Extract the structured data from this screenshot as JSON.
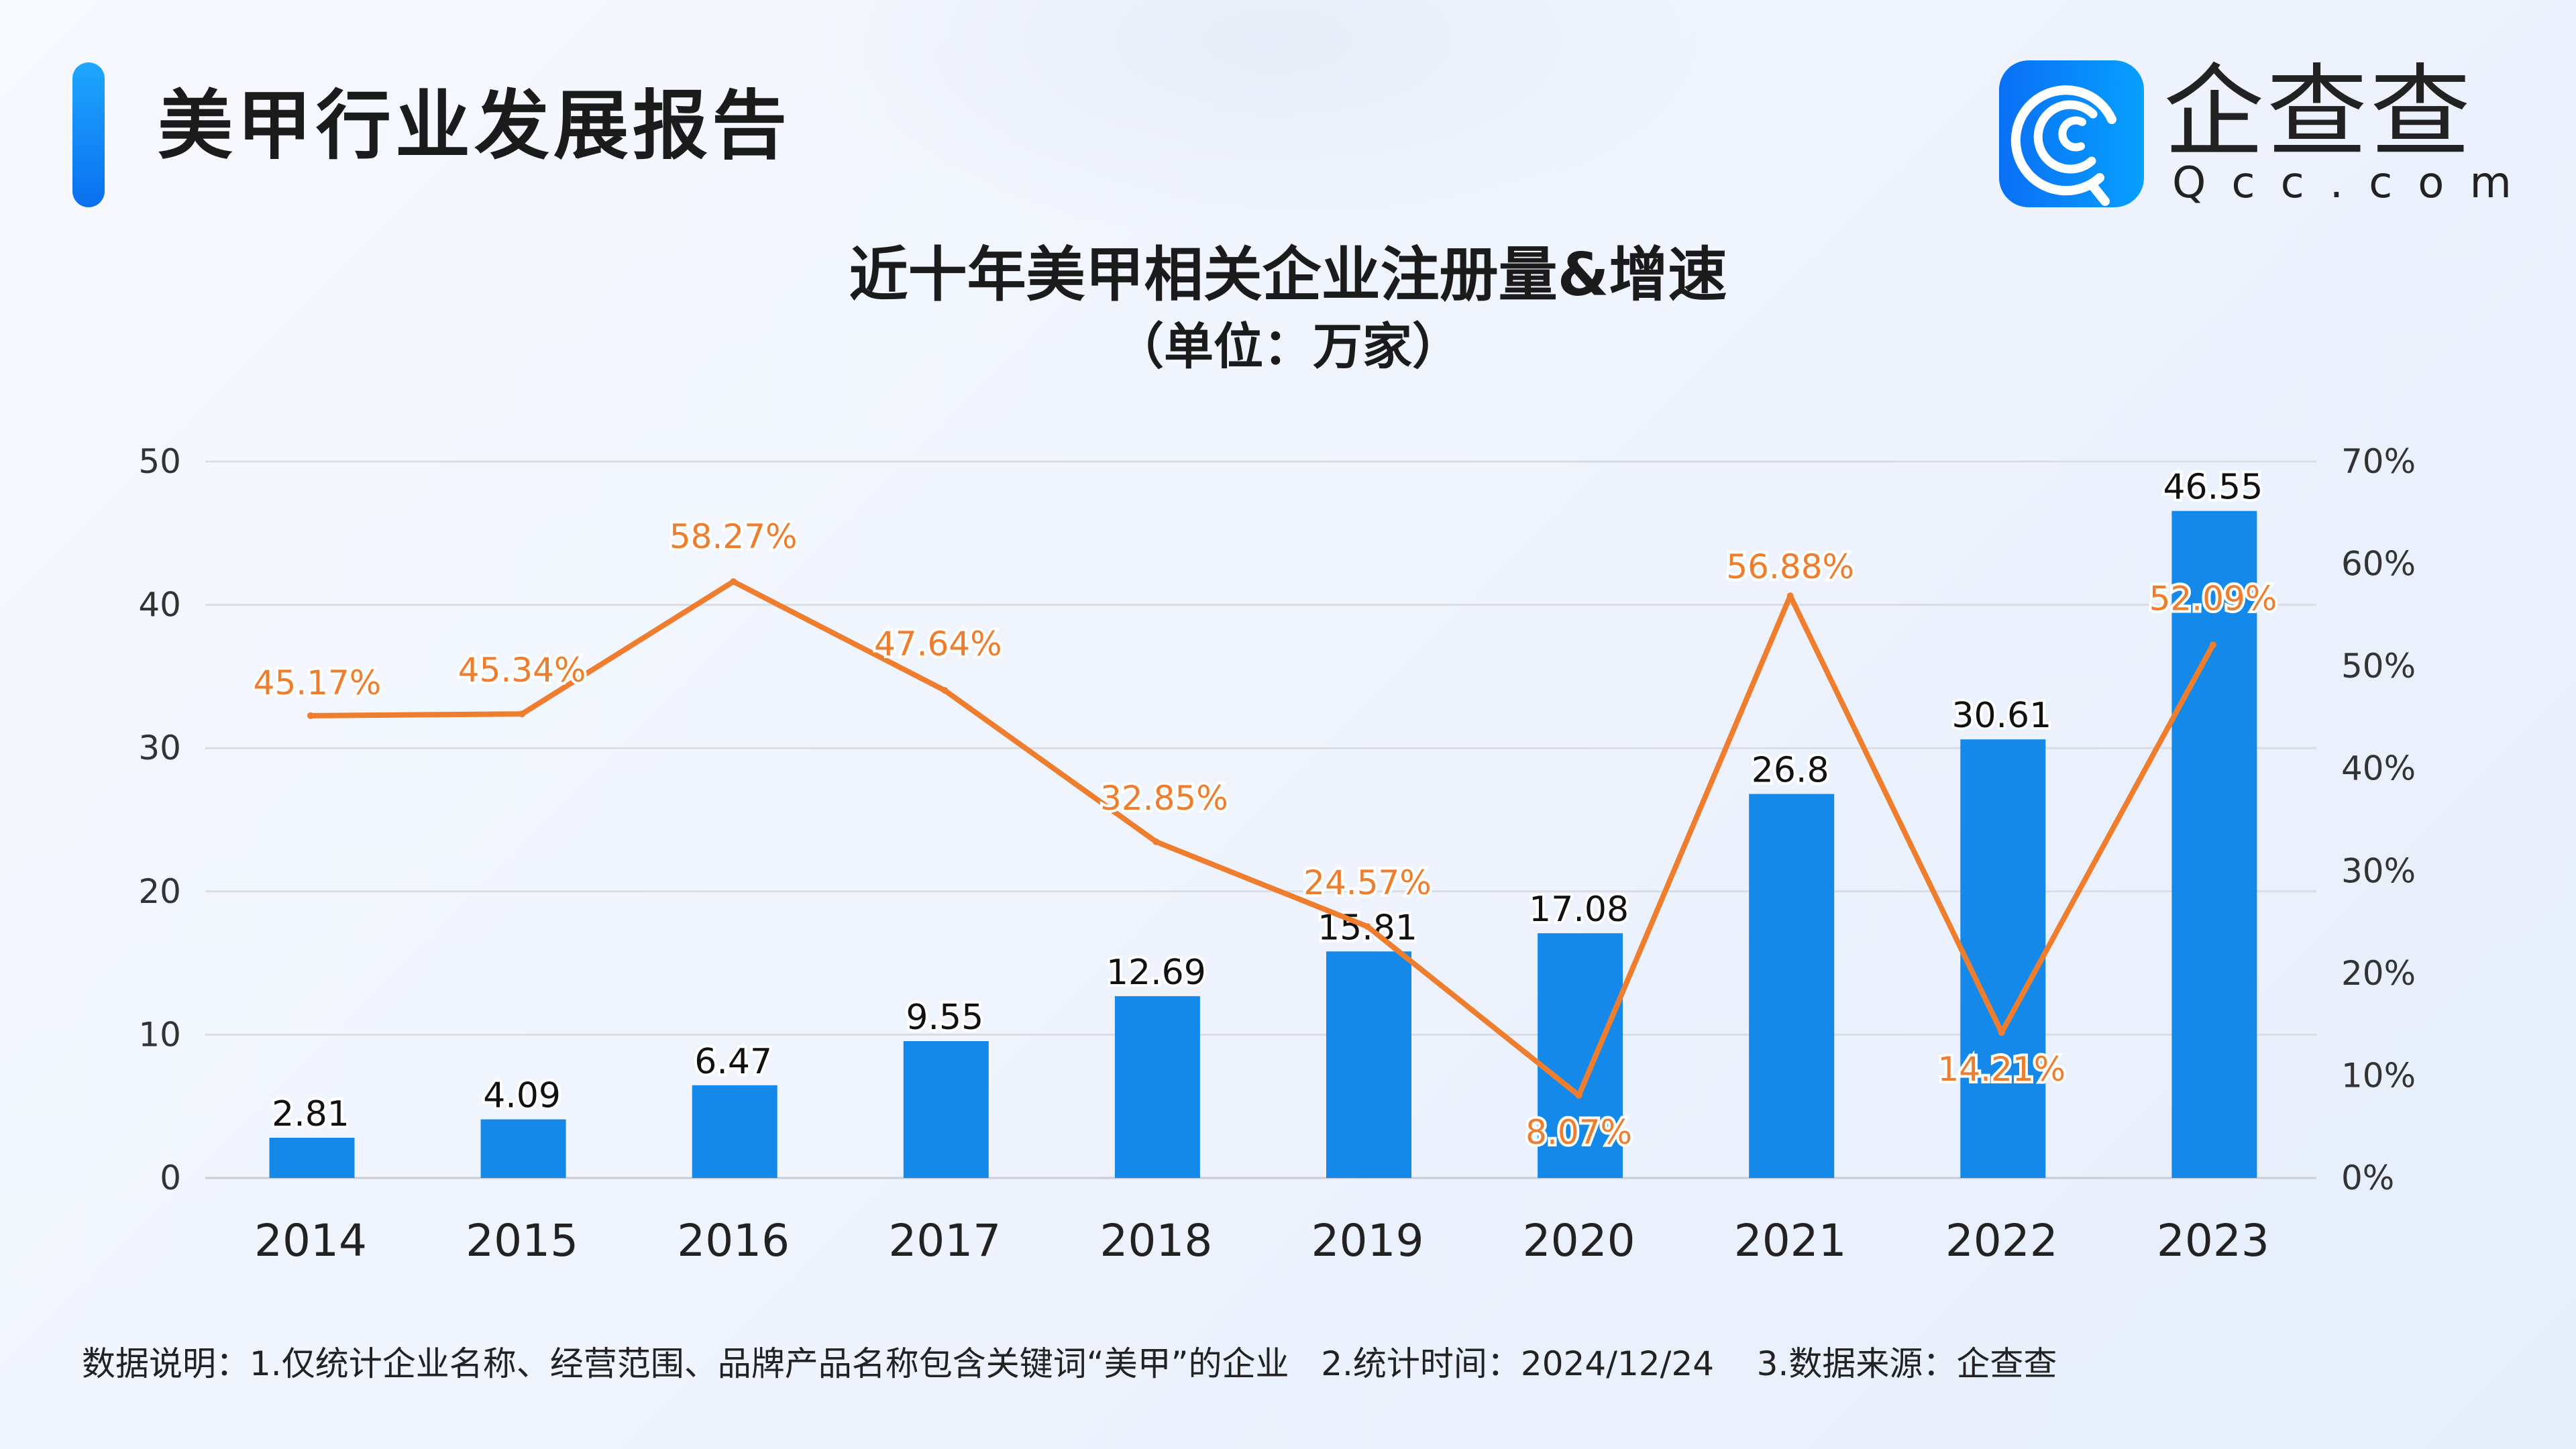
{
  "header": {
    "title": "美甲行业发展报告"
  },
  "logo": {
    "cn": "企查查",
    "en": "Qcc.com"
  },
  "colors": {
    "bar": "#1589EA",
    "line": "#EF7D2E",
    "label_orange": "#EF7D2E",
    "accent": "#0A78F2"
  },
  "chart_data": {
    "type": "bar+line",
    "title": "近十年美甲相关企业注册量&增速",
    "subtitle": "（单位：万家）",
    "categories": [
      "2014",
      "2015",
      "2016",
      "2017",
      "2018",
      "2019",
      "2020",
      "2021",
      "2022",
      "2023"
    ],
    "series": [
      {
        "type": "bar",
        "axis": "left",
        "values": [
          2.81,
          4.09,
          6.47,
          9.55,
          12.69,
          15.81,
          17.08,
          26.8,
          30.61,
          46.55
        ],
        "labels": [
          "2.81",
          "4.09",
          "6.47",
          "9.55",
          "12.69",
          "15.81",
          "17.08",
          "26.8",
          "30.61",
          "46.55"
        ]
      },
      {
        "type": "line",
        "axis": "right",
        "values": [
          45.17,
          45.34,
          58.27,
          47.64,
          32.85,
          24.57,
          8.07,
          56.88,
          14.21,
          52.09
        ],
        "labels": [
          "45.17%",
          "45.34%",
          "58.27%",
          "47.64%",
          "32.85%",
          "24.57%",
          "8.07%",
          "56.88%",
          "14.21%",
          "52.09%"
        ]
      }
    ],
    "y_left": {
      "lim": [
        0,
        50
      ],
      "ticks": [
        "0",
        "10",
        "20",
        "30",
        "40",
        "50"
      ]
    },
    "y_right": {
      "lim": [
        0,
        70
      ],
      "ticks": [
        "0%",
        "10%",
        "20%",
        "30%",
        "40%",
        "50%",
        "60%",
        "70%"
      ]
    },
    "grid": true,
    "legend": "none"
  },
  "footer": {
    "note": "数据说明：1.仅统计企业名称、经营范围、品牌产品名称包含关键词“美甲”的企业   2.统计时间：2024/12/24    3.数据来源：企查查"
  }
}
